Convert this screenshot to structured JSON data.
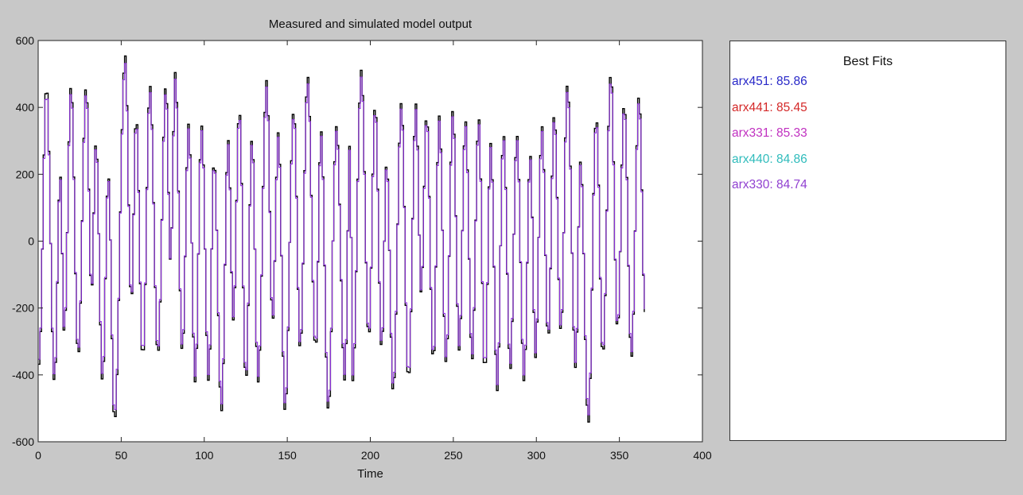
{
  "chart_data": {
    "type": "line",
    "title": "Measured and simulated model output",
    "xlabel": "Time",
    "ylabel": "",
    "xlim": [
      0,
      400
    ],
    "ylim": [
      -600,
      600
    ],
    "xticks": [
      0,
      50,
      100,
      150,
      200,
      250,
      300,
      350,
      400
    ],
    "yticks": [
      -600,
      -400,
      -200,
      0,
      200,
      400,
      600
    ],
    "grid": false,
    "line_colors": {
      "measured": "#000000",
      "simulated": "#9030e0"
    },
    "series": [
      {
        "points": [
          [
            0,
            -368
          ],
          [
            4.5,
            466
          ],
          [
            9.3,
            -422
          ],
          [
            12.8,
            199
          ],
          [
            15.2,
            -274
          ],
          [
            19.3,
            466
          ],
          [
            23.6,
            -344
          ],
          [
            28.4,
            466
          ],
          [
            31.6,
            -155
          ],
          [
            34.3,
            298
          ],
          [
            38.3,
            -422
          ],
          [
            41.7,
            197
          ],
          [
            45.5,
            -541
          ],
          [
            51.9,
            555
          ],
          [
            55.6,
            -183
          ],
          [
            58.5,
            376
          ],
          [
            62.5,
            -352
          ],
          [
            66.8,
            466
          ],
          [
            71.6,
            -340
          ],
          [
            76.4,
            469
          ],
          [
            79.2,
            -60
          ],
          [
            82.1,
            506
          ],
          [
            86.3,
            -331
          ],
          [
            90.1,
            351
          ],
          [
            94.1,
            -422
          ],
          [
            97.9,
            345
          ],
          [
            102.2,
            -420
          ],
          [
            105.4,
            244
          ],
          [
            109.9,
            -508
          ],
          [
            113.9,
            302
          ],
          [
            117.1,
            -237
          ],
          [
            120.6,
            396
          ],
          [
            124.6,
            -422
          ],
          [
            128.3,
            310
          ],
          [
            131.9,
            -422
          ],
          [
            137.1,
            481
          ],
          [
            140.7,
            -241
          ],
          [
            144.1,
            325
          ],
          [
            148.2,
            -508
          ],
          [
            153.4,
            392
          ],
          [
            157.3,
            -323
          ],
          [
            161.8,
            493
          ],
          [
            166.6,
            -327
          ],
          [
            169.8,
            331
          ],
          [
            174.3,
            -508
          ],
          [
            179.1,
            343
          ],
          [
            184.2,
            -418
          ],
          [
            187.3,
            300
          ],
          [
            188.9,
            -418
          ],
          [
            194.1,
            512
          ],
          [
            198.6,
            -290
          ],
          [
            202.4,
            410
          ],
          [
            206.4,
            -327
          ],
          [
            209.3,
            236
          ],
          [
            213.3,
            -451
          ],
          [
            218.2,
            415
          ],
          [
            222.5,
            -418
          ],
          [
            227,
            410
          ],
          [
            230.2,
            -157
          ],
          [
            233.4,
            380
          ],
          [
            237.5,
            -364
          ],
          [
            241,
            374
          ],
          [
            245.2,
            -364
          ],
          [
            249.2,
            392
          ],
          [
            253.1,
            -327
          ],
          [
            256.8,
            361
          ],
          [
            260.8,
            -356
          ],
          [
            264.8,
            368
          ],
          [
            268.5,
            -397
          ],
          [
            272,
            292
          ],
          [
            276,
            -447
          ],
          [
            279.7,
            322
          ],
          [
            283.8,
            -385
          ],
          [
            287.8,
            317
          ],
          [
            292.1,
            -418
          ],
          [
            295.8,
            259
          ],
          [
            299,
            -348
          ],
          [
            302.9,
            343
          ],
          [
            306.6,
            -294
          ],
          [
            310.3,
            380
          ],
          [
            314.3,
            -270
          ],
          [
            318.2,
            468
          ],
          [
            323.2,
            -381
          ],
          [
            326.1,
            238
          ],
          [
            330.8,
            -545
          ],
          [
            335.6,
            372
          ],
          [
            339.5,
            -344
          ],
          [
            344.4,
            503
          ],
          [
            348.4,
            -266
          ],
          [
            352.4,
            413
          ],
          [
            356.8,
            -348
          ],
          [
            361.3,
            436
          ],
          [
            365,
            -212
          ]
        ]
      }
    ]
  },
  "best_fits": {
    "title": "Best Fits",
    "items": [
      {
        "label": "arx451: 85.86",
        "color": "#2828c8"
      },
      {
        "label": "arx441: 85.45",
        "color": "#d42828"
      },
      {
        "label": "arx331: 85.33",
        "color": "#c030c0"
      },
      {
        "label": "arx440: 84.86",
        "color": "#30bcbc"
      },
      {
        "label": "arx330: 84.74",
        "color": "#9040d0"
      }
    ]
  }
}
